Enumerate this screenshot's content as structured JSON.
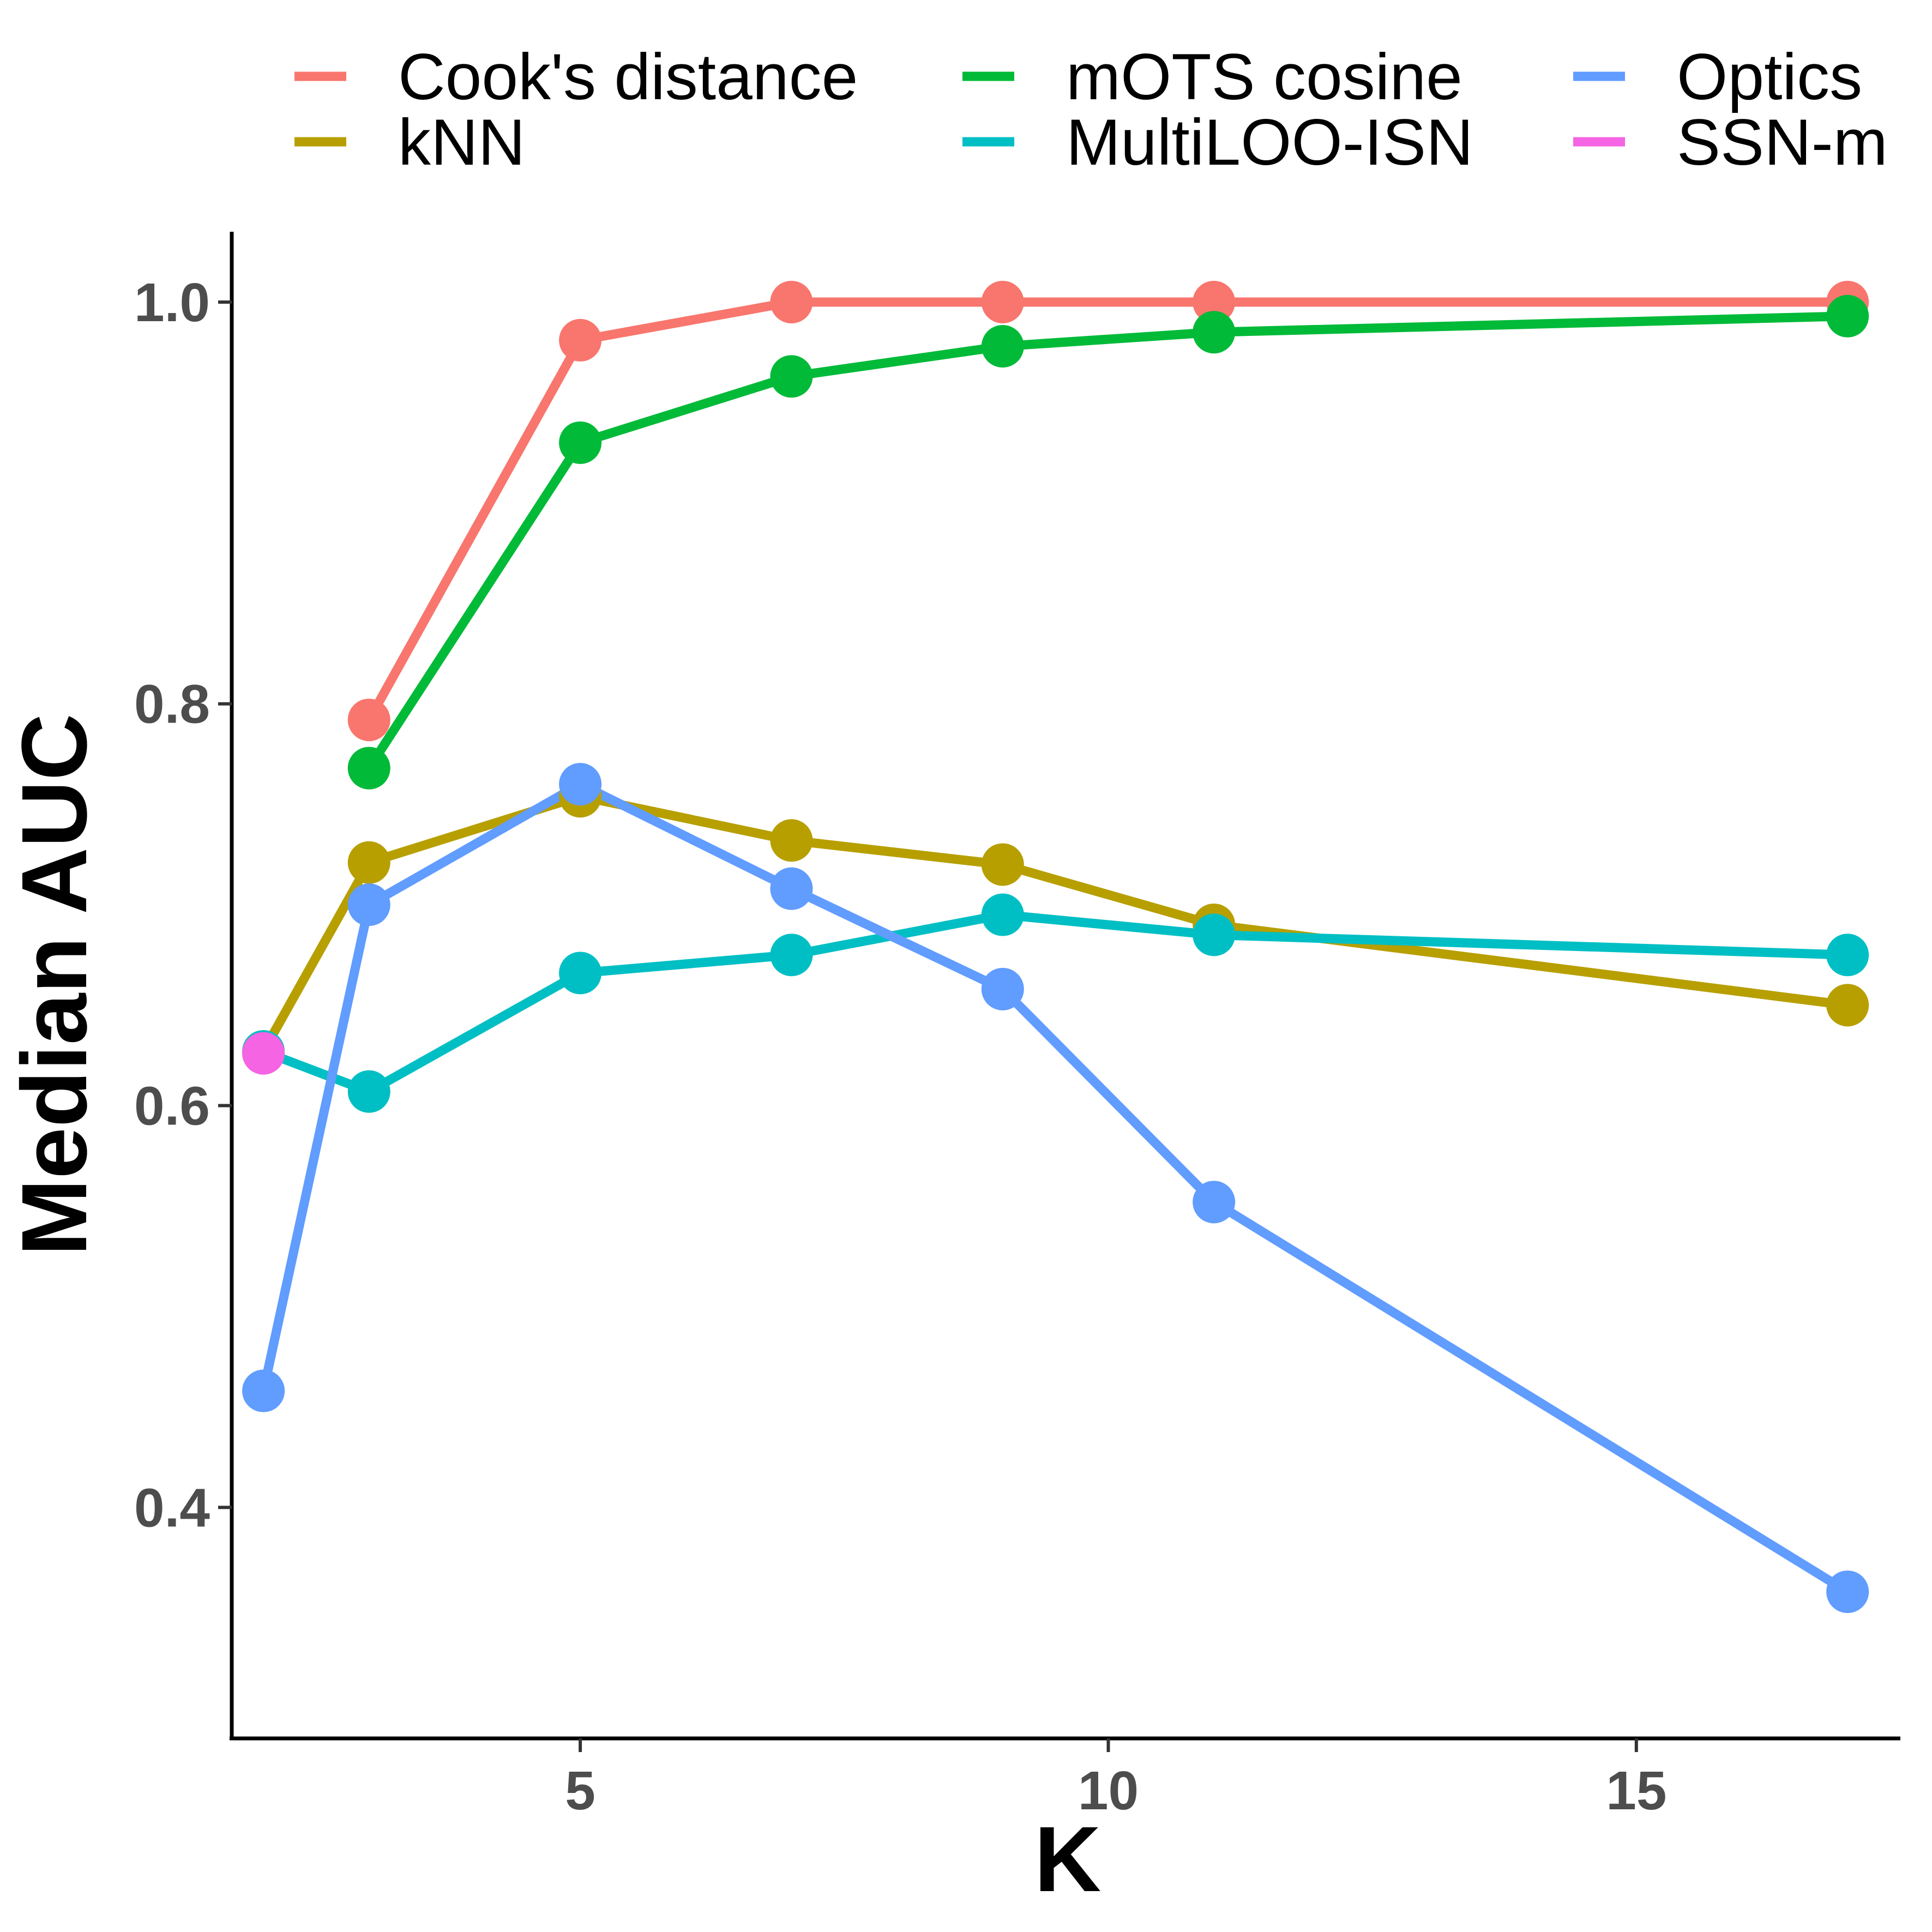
{
  "chart_data": {
    "type": "line",
    "xlabel": "K",
    "ylabel": "Median AUC",
    "xlim": [
      1.7,
      17.5
    ],
    "ylim": [
      0.285,
      1.035
    ],
    "xticks": [
      5,
      10,
      15
    ],
    "yticks": [
      0.4,
      0.6,
      0.8,
      1.0
    ],
    "xtick_labels": [
      "5",
      "10",
      "15"
    ],
    "ytick_labels": [
      "0.4",
      "0.6",
      "0.8",
      "1.0"
    ],
    "legend_position": "top",
    "grid": false,
    "series": [
      {
        "name": "Cook's distance",
        "color": "#F8766D",
        "x": [
          3,
          5,
          7,
          9,
          11,
          17
        ],
        "y": [
          0.792,
          0.981,
          1.0,
          1.0,
          1.0,
          1.0
        ]
      },
      {
        "name": "kNN",
        "color": "#B79F00",
        "x": [
          2,
          3,
          5,
          7,
          9,
          11,
          17
        ],
        "y": [
          0.627,
          0.721,
          0.754,
          0.732,
          0.72,
          0.69,
          0.65
        ]
      },
      {
        "name": "mOTS cosine",
        "color": "#00BA38",
        "x": [
          3,
          5,
          7,
          9,
          11,
          17
        ],
        "y": [
          0.768,
          0.93,
          0.963,
          0.978,
          0.985,
          0.993
        ]
      },
      {
        "name": "MultiLOO-ISN",
        "color": "#00BFC4",
        "x": [
          2,
          3,
          5,
          7,
          9,
          11,
          17
        ],
        "y": [
          0.627,
          0.607,
          0.666,
          0.675,
          0.695,
          0.685,
          0.675
        ]
      },
      {
        "name": "Optics",
        "color": "#619CFF",
        "x": [
          2,
          3,
          5,
          7,
          9,
          11,
          17
        ],
        "y": [
          0.458,
          0.7,
          0.76,
          0.708,
          0.658,
          0.552,
          0.358
        ]
      },
      {
        "name": "SSN-m",
        "color": "#F564E3",
        "x": [
          2
        ],
        "y": [
          0.626
        ]
      }
    ]
  }
}
